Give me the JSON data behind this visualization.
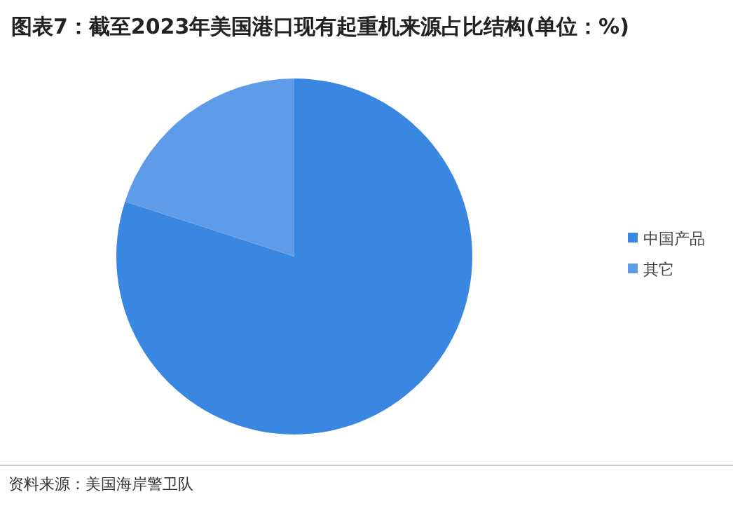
{
  "chart_data": {
    "type": "pie",
    "title": "图表7：截至2023年美国港口现有起重机来源占比结构(单位：%)",
    "categories": [
      "中国产品",
      "其它"
    ],
    "values": [
      80,
      20
    ],
    "colors": [
      "#3a87e2",
      "#5e9ce9"
    ],
    "legend": "right",
    "annotations": [
      "资料来源：美国海岸警卫队"
    ]
  }
}
